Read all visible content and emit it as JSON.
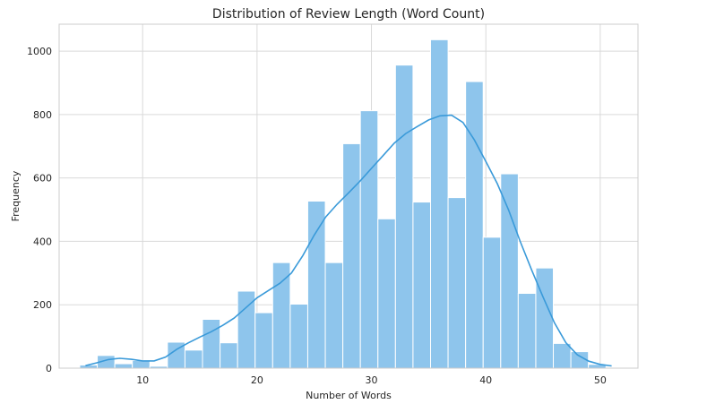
{
  "chart_data": {
    "type": "bar",
    "title": "Distribution of Review Length (Word Count)",
    "xlabel": "Number of Words",
    "ylabel": "Frequency",
    "xlim": [
      2.7,
      53.3
    ],
    "ylim": [
      0,
      1085
    ],
    "xticks": [
      10,
      20,
      30,
      40,
      50
    ],
    "yticks": [
      0,
      200,
      400,
      600,
      800,
      1000
    ],
    "grid": true,
    "bar_color": "#8ec5ec",
    "bar_edge_color": "#ffffff",
    "line_color": "#3a9ad9",
    "bins": [
      {
        "x0": 4.5,
        "x1": 6.033,
        "count": 10
      },
      {
        "x0": 6.033,
        "x1": 7.567,
        "count": 40
      },
      {
        "x0": 7.567,
        "x1": 9.1,
        "count": 14
      },
      {
        "x0": 9.1,
        "x1": 10.633,
        "count": 24
      },
      {
        "x0": 10.633,
        "x1": 12.167,
        "count": 6
      },
      {
        "x0": 12.167,
        "x1": 13.7,
        "count": 82
      },
      {
        "x0": 13.7,
        "x1": 15.233,
        "count": 57
      },
      {
        "x0": 15.233,
        "x1": 16.767,
        "count": 154
      },
      {
        "x0": 16.767,
        "x1": 18.3,
        "count": 80
      },
      {
        "x0": 18.3,
        "x1": 19.833,
        "count": 243
      },
      {
        "x0": 19.833,
        "x1": 21.367,
        "count": 175
      },
      {
        "x0": 21.367,
        "x1": 22.9,
        "count": 333
      },
      {
        "x0": 22.9,
        "x1": 24.433,
        "count": 202
      },
      {
        "x0": 24.433,
        "x1": 25.967,
        "count": 527
      },
      {
        "x0": 25.967,
        "x1": 27.5,
        "count": 333
      },
      {
        "x0": 27.5,
        "x1": 29.033,
        "count": 708
      },
      {
        "x0": 29.033,
        "x1": 30.567,
        "count": 812
      },
      {
        "x0": 30.567,
        "x1": 32.1,
        "count": 471
      },
      {
        "x0": 32.1,
        "x1": 33.633,
        "count": 956
      },
      {
        "x0": 33.633,
        "x1": 35.167,
        "count": 524
      },
      {
        "x0": 35.167,
        "x1": 36.7,
        "count": 1036
      },
      {
        "x0": 36.7,
        "x1": 38.233,
        "count": 538
      },
      {
        "x0": 38.233,
        "x1": 39.767,
        "count": 904
      },
      {
        "x0": 39.767,
        "x1": 41.3,
        "count": 413
      },
      {
        "x0": 41.3,
        "x1": 42.833,
        "count": 613
      },
      {
        "x0": 42.833,
        "x1": 44.367,
        "count": 236
      },
      {
        "x0": 44.367,
        "x1": 45.9,
        "count": 316
      },
      {
        "x0": 45.9,
        "x1": 47.433,
        "count": 78
      },
      {
        "x0": 47.433,
        "x1": 48.967,
        "count": 52
      },
      {
        "x0": 48.967,
        "x1": 50.5,
        "count": 12
      }
    ],
    "kde": [
      [
        5,
        8
      ],
      [
        6,
        17
      ],
      [
        7,
        27
      ],
      [
        8,
        31
      ],
      [
        9,
        28
      ],
      [
        10,
        23
      ],
      [
        11,
        23
      ],
      [
        12,
        35
      ],
      [
        13,
        60
      ],
      [
        14,
        80
      ],
      [
        15,
        98
      ],
      [
        16,
        115
      ],
      [
        17,
        135
      ],
      [
        18,
        158
      ],
      [
        19,
        190
      ],
      [
        20,
        222
      ],
      [
        21,
        245
      ],
      [
        22,
        268
      ],
      [
        23,
        300
      ],
      [
        24,
        355
      ],
      [
        25,
        420
      ],
      [
        26,
        477
      ],
      [
        27,
        517
      ],
      [
        28,
        553
      ],
      [
        29,
        590
      ],
      [
        30,
        630
      ],
      [
        31,
        670
      ],
      [
        32,
        710
      ],
      [
        33,
        740
      ],
      [
        34,
        762
      ],
      [
        35,
        783
      ],
      [
        36,
        796
      ],
      [
        37,
        798
      ],
      [
        38,
        775
      ],
      [
        39,
        720
      ],
      [
        40,
        652
      ],
      [
        41,
        582
      ],
      [
        42,
        498
      ],
      [
        43,
        400
      ],
      [
        44,
        310
      ],
      [
        45,
        225
      ],
      [
        46,
        143
      ],
      [
        47,
        80
      ],
      [
        48,
        42
      ],
      [
        49,
        22
      ],
      [
        50,
        12
      ],
      [
        51,
        7
      ]
    ]
  }
}
